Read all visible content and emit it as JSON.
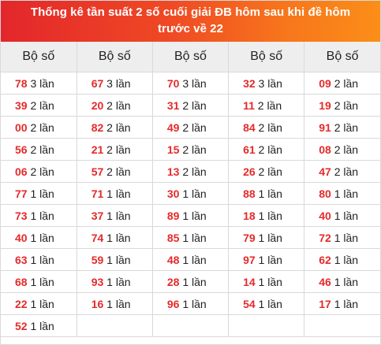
{
  "header": {
    "title": "Thống kê tần suất 2 số cuối giải ĐB hôm sau khi đề hôm trước về 22"
  },
  "table": {
    "column_label": "Bộ số",
    "columns": [
      [
        {
          "num": "78",
          "count": "3 lần"
        },
        {
          "num": "39",
          "count": "2 lần"
        },
        {
          "num": "00",
          "count": "2 lần"
        },
        {
          "num": "56",
          "count": "2 lần"
        },
        {
          "num": "06",
          "count": "2 lần"
        },
        {
          "num": "77",
          "count": "1 lần"
        },
        {
          "num": "73",
          "count": "1 lần"
        },
        {
          "num": "40",
          "count": "1 lần"
        },
        {
          "num": "63",
          "count": "1 lần"
        },
        {
          "num": "68",
          "count": "1 lần"
        },
        {
          "num": "22",
          "count": "1 lần"
        },
        {
          "num": "52",
          "count": "1 lần"
        }
      ],
      [
        {
          "num": "67",
          "count": "3 lần"
        },
        {
          "num": "20",
          "count": "2 lần"
        },
        {
          "num": "82",
          "count": "2 lần"
        },
        {
          "num": "21",
          "count": "2 lần"
        },
        {
          "num": "57",
          "count": "2 lần"
        },
        {
          "num": "71",
          "count": "1 lần"
        },
        {
          "num": "37",
          "count": "1 lần"
        },
        {
          "num": "74",
          "count": "1 lần"
        },
        {
          "num": "59",
          "count": "1 lần"
        },
        {
          "num": "93",
          "count": "1 lần"
        },
        {
          "num": "16",
          "count": "1 lần"
        }
      ],
      [
        {
          "num": "70",
          "count": "3 lần"
        },
        {
          "num": "31",
          "count": "2 lần"
        },
        {
          "num": "49",
          "count": "2 lần"
        },
        {
          "num": "15",
          "count": "2 lần"
        },
        {
          "num": "13",
          "count": "2 lần"
        },
        {
          "num": "30",
          "count": "1 lần"
        },
        {
          "num": "89",
          "count": "1 lần"
        },
        {
          "num": "85",
          "count": "1 lần"
        },
        {
          "num": "48",
          "count": "1 lần"
        },
        {
          "num": "28",
          "count": "1 lần"
        },
        {
          "num": "96",
          "count": "1 lần"
        }
      ],
      [
        {
          "num": "32",
          "count": "3 lần"
        },
        {
          "num": "11",
          "count": "2 lần"
        },
        {
          "num": "84",
          "count": "2 lần"
        },
        {
          "num": "61",
          "count": "2 lần"
        },
        {
          "num": "26",
          "count": "2 lần"
        },
        {
          "num": "88",
          "count": "1 lần"
        },
        {
          "num": "18",
          "count": "1 lần"
        },
        {
          "num": "79",
          "count": "1 lần"
        },
        {
          "num": "97",
          "count": "1 lần"
        },
        {
          "num": "14",
          "count": "1 lần"
        },
        {
          "num": "54",
          "count": "1 lần"
        }
      ],
      [
        {
          "num": "09",
          "count": "2 lần"
        },
        {
          "num": "19",
          "count": "2 lần"
        },
        {
          "num": "91",
          "count": "2 lần"
        },
        {
          "num": "08",
          "count": "2 lần"
        },
        {
          "num": "47",
          "count": "2 lần"
        },
        {
          "num": "80",
          "count": "1 lần"
        },
        {
          "num": "40",
          "count": "1 lần"
        },
        {
          "num": "72",
          "count": "1 lần"
        },
        {
          "num": "62",
          "count": "1 lần"
        },
        {
          "num": "46",
          "count": "1 lần"
        },
        {
          "num": "17",
          "count": "1 lần"
        }
      ]
    ]
  }
}
